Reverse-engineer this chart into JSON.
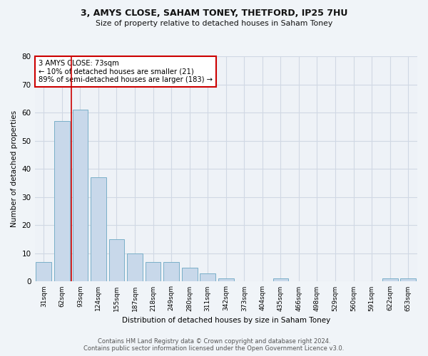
{
  "title_line1": "3, AMYS CLOSE, SAHAM TONEY, THETFORD, IP25 7HU",
  "title_line2": "Size of property relative to detached houses in Saham Toney",
  "xlabel": "Distribution of detached houses by size in Saham Toney",
  "ylabel": "Number of detached properties",
  "categories": [
    "31sqm",
    "62sqm",
    "93sqm",
    "124sqm",
    "155sqm",
    "187sqm",
    "218sqm",
    "249sqm",
    "280sqm",
    "311sqm",
    "342sqm",
    "373sqm",
    "404sqm",
    "435sqm",
    "466sqm",
    "498sqm",
    "529sqm",
    "560sqm",
    "591sqm",
    "622sqm",
    "653sqm"
  ],
  "values": [
    7,
    57,
    61,
    37,
    15,
    10,
    7,
    7,
    5,
    3,
    1,
    0,
    0,
    1,
    0,
    0,
    0,
    0,
    0,
    1,
    1
  ],
  "bar_color": "#c8d8ea",
  "bar_edge_color": "#7aafc8",
  "property_line_x": 1.5,
  "annotation_line1": "3 AMYS CLOSE: 73sqm",
  "annotation_line2": "← 10% of detached houses are smaller (21)",
  "annotation_line3": "89% of semi-detached houses are larger (183) →",
  "annotation_box_color": "#ffffff",
  "annotation_box_edge": "#cc0000",
  "vline_color": "#cc0000",
  "ylim": [
    0,
    80
  ],
  "yticks": [
    0,
    10,
    20,
    30,
    40,
    50,
    60,
    70,
    80
  ],
  "grid_color": "#d0d8e4",
  "footer_line1": "Contains HM Land Registry data © Crown copyright and database right 2024.",
  "footer_line2": "Contains public sector information licensed under the Open Government Licence v3.0.",
  "bg_color": "#f0f4f8",
  "plot_bg_color": "#eef2f7"
}
